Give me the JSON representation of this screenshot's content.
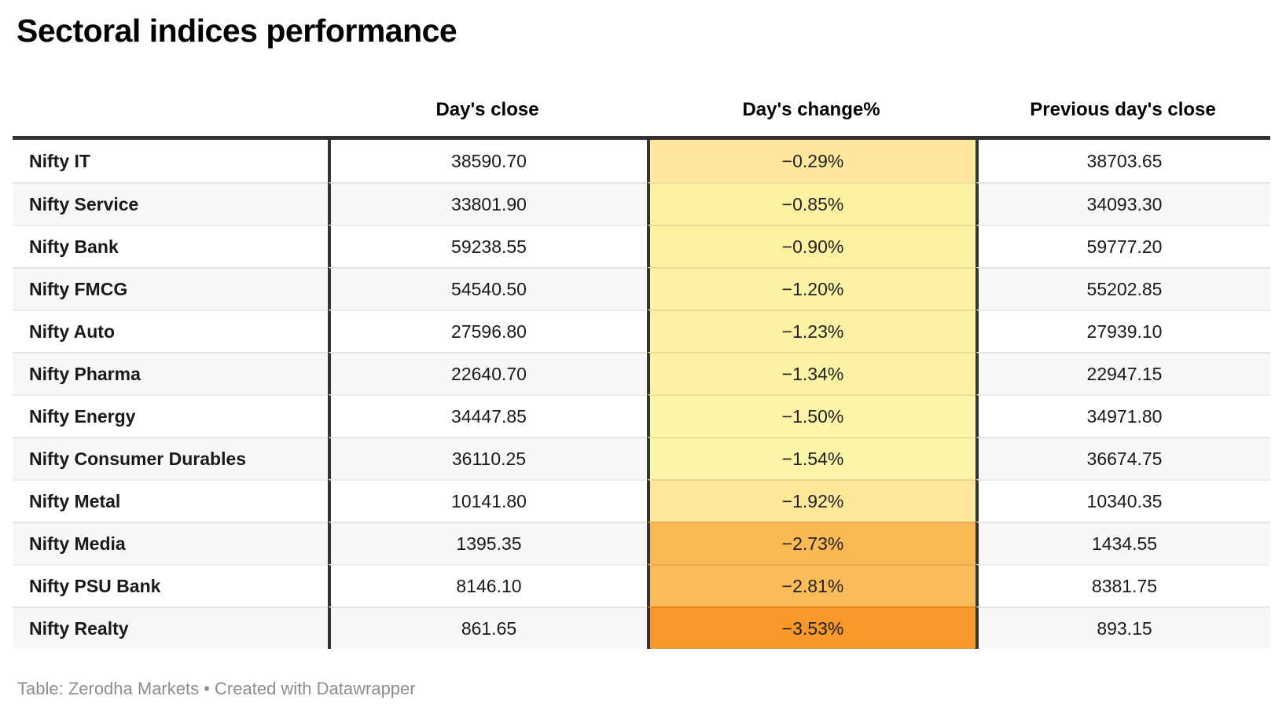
{
  "title": "Sectoral indices performance",
  "chart_data": {
    "type": "table",
    "title": "Sectoral indices performance",
    "columns": [
      "",
      "Day's close",
      "Day's change%",
      "Previous day's close"
    ],
    "heatmap_column": "Day's change%",
    "rows": [
      {
        "name": "Nifty IT",
        "close": "38590.70",
        "change_label": "−0.29%",
        "change_pct": -0.29,
        "prev": "38703.65",
        "heat_color": "#ffe79d"
      },
      {
        "name": "Nifty Service",
        "close": "33801.90",
        "change_label": "−0.85%",
        "change_pct": -0.85,
        "prev": "34093.30",
        "heat_color": "#fdf1a2"
      },
      {
        "name": "Nifty Bank",
        "close": "59238.55",
        "change_label": "−0.90%",
        "change_pct": -0.9,
        "prev": "59777.20",
        "heat_color": "#fdf1a2"
      },
      {
        "name": "Nifty FMCG",
        "close": "54540.50",
        "change_label": "−1.20%",
        "change_pct": -1.2,
        "prev": "55202.85",
        "heat_color": "#fcf2a3"
      },
      {
        "name": "Nifty Auto",
        "close": "27596.80",
        "change_label": "−1.23%",
        "change_pct": -1.23,
        "prev": "27939.10",
        "heat_color": "#fcf2a3"
      },
      {
        "name": "Nifty Pharma",
        "close": "22640.70",
        "change_label": "−1.34%",
        "change_pct": -1.34,
        "prev": "22947.15",
        "heat_color": "#fcf2a4"
      },
      {
        "name": "Nifty Energy",
        "close": "34447.85",
        "change_label": "−1.50%",
        "change_pct": -1.5,
        "prev": "34971.80",
        "heat_color": "#fcf4a6"
      },
      {
        "name": "Nifty Consumer Durables",
        "close": "36110.25",
        "change_label": "−1.54%",
        "change_pct": -1.54,
        "prev": "36674.75",
        "heat_color": "#fcf4a6"
      },
      {
        "name": "Nifty Metal",
        "close": "10141.80",
        "change_label": "−1.92%",
        "change_pct": -1.92,
        "prev": "10340.35",
        "heat_color": "#fde89a"
      },
      {
        "name": "Nifty Media",
        "close": "1395.35",
        "change_label": "−2.73%",
        "change_pct": -2.73,
        "prev": "1434.55",
        "heat_color": "#fbb955"
      },
      {
        "name": "Nifty PSU Bank",
        "close": "8146.10",
        "change_label": "−2.81%",
        "change_pct": -2.81,
        "prev": "8381.75",
        "heat_color": "#fbbb58"
      },
      {
        "name": "Nifty Realty",
        "close": "861.65",
        "change_label": "−3.53%",
        "change_pct": -3.53,
        "prev": "893.15",
        "heat_color": "#f8982b"
      }
    ],
    "footer": "Table: Zerodha Markets • Created with Datawrapper"
  },
  "colors": {
    "divider": "#333333",
    "stripe": "#f7f7f7",
    "body_text": "#1a1a1a",
    "footer_text": "#8d8d8d"
  }
}
